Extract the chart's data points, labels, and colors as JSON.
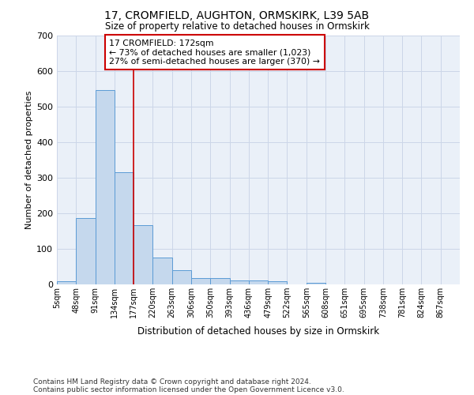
{
  "title1": "17, CROMFIELD, AUGHTON, ORMSKIRK, L39 5AB",
  "title2": "Size of property relative to detached houses in Ormskirk",
  "xlabel": "Distribution of detached houses by size in Ormskirk",
  "ylabel": "Number of detached properties",
  "bin_labels": [
    "5sqm",
    "48sqm",
    "91sqm",
    "134sqm",
    "177sqm",
    "220sqm",
    "263sqm",
    "306sqm",
    "350sqm",
    "393sqm",
    "436sqm",
    "479sqm",
    "522sqm",
    "565sqm",
    "608sqm",
    "651sqm",
    "695sqm",
    "738sqm",
    "781sqm",
    "824sqm",
    "867sqm"
  ],
  "bar_values": [
    8,
    186,
    546,
    315,
    167,
    75,
    40,
    17,
    17,
    12,
    12,
    10,
    0,
    5,
    0,
    0,
    0,
    0,
    0,
    0,
    0
  ],
  "bar_color": "#c5d8ed",
  "bar_edge_color": "#5b9bd5",
  "grid_color": "#ccd6e8",
  "background_color": "#eaf0f8",
  "annotation_text": "17 CROMFIELD: 172sqm\n← 73% of detached houses are smaller (1,023)\n27% of semi-detached houses are larger (370) →",
  "annotation_box_color": "#ffffff",
  "annotation_box_edge_color": "#cc0000",
  "red_line_color": "#cc0000",
  "red_line_x": 4,
  "ylim": [
    0,
    700
  ],
  "yticks": [
    0,
    100,
    200,
    300,
    400,
    500,
    600,
    700
  ],
  "footer1": "Contains HM Land Registry data © Crown copyright and database right 2024.",
  "footer2": "Contains public sector information licensed under the Open Government Licence v3.0."
}
